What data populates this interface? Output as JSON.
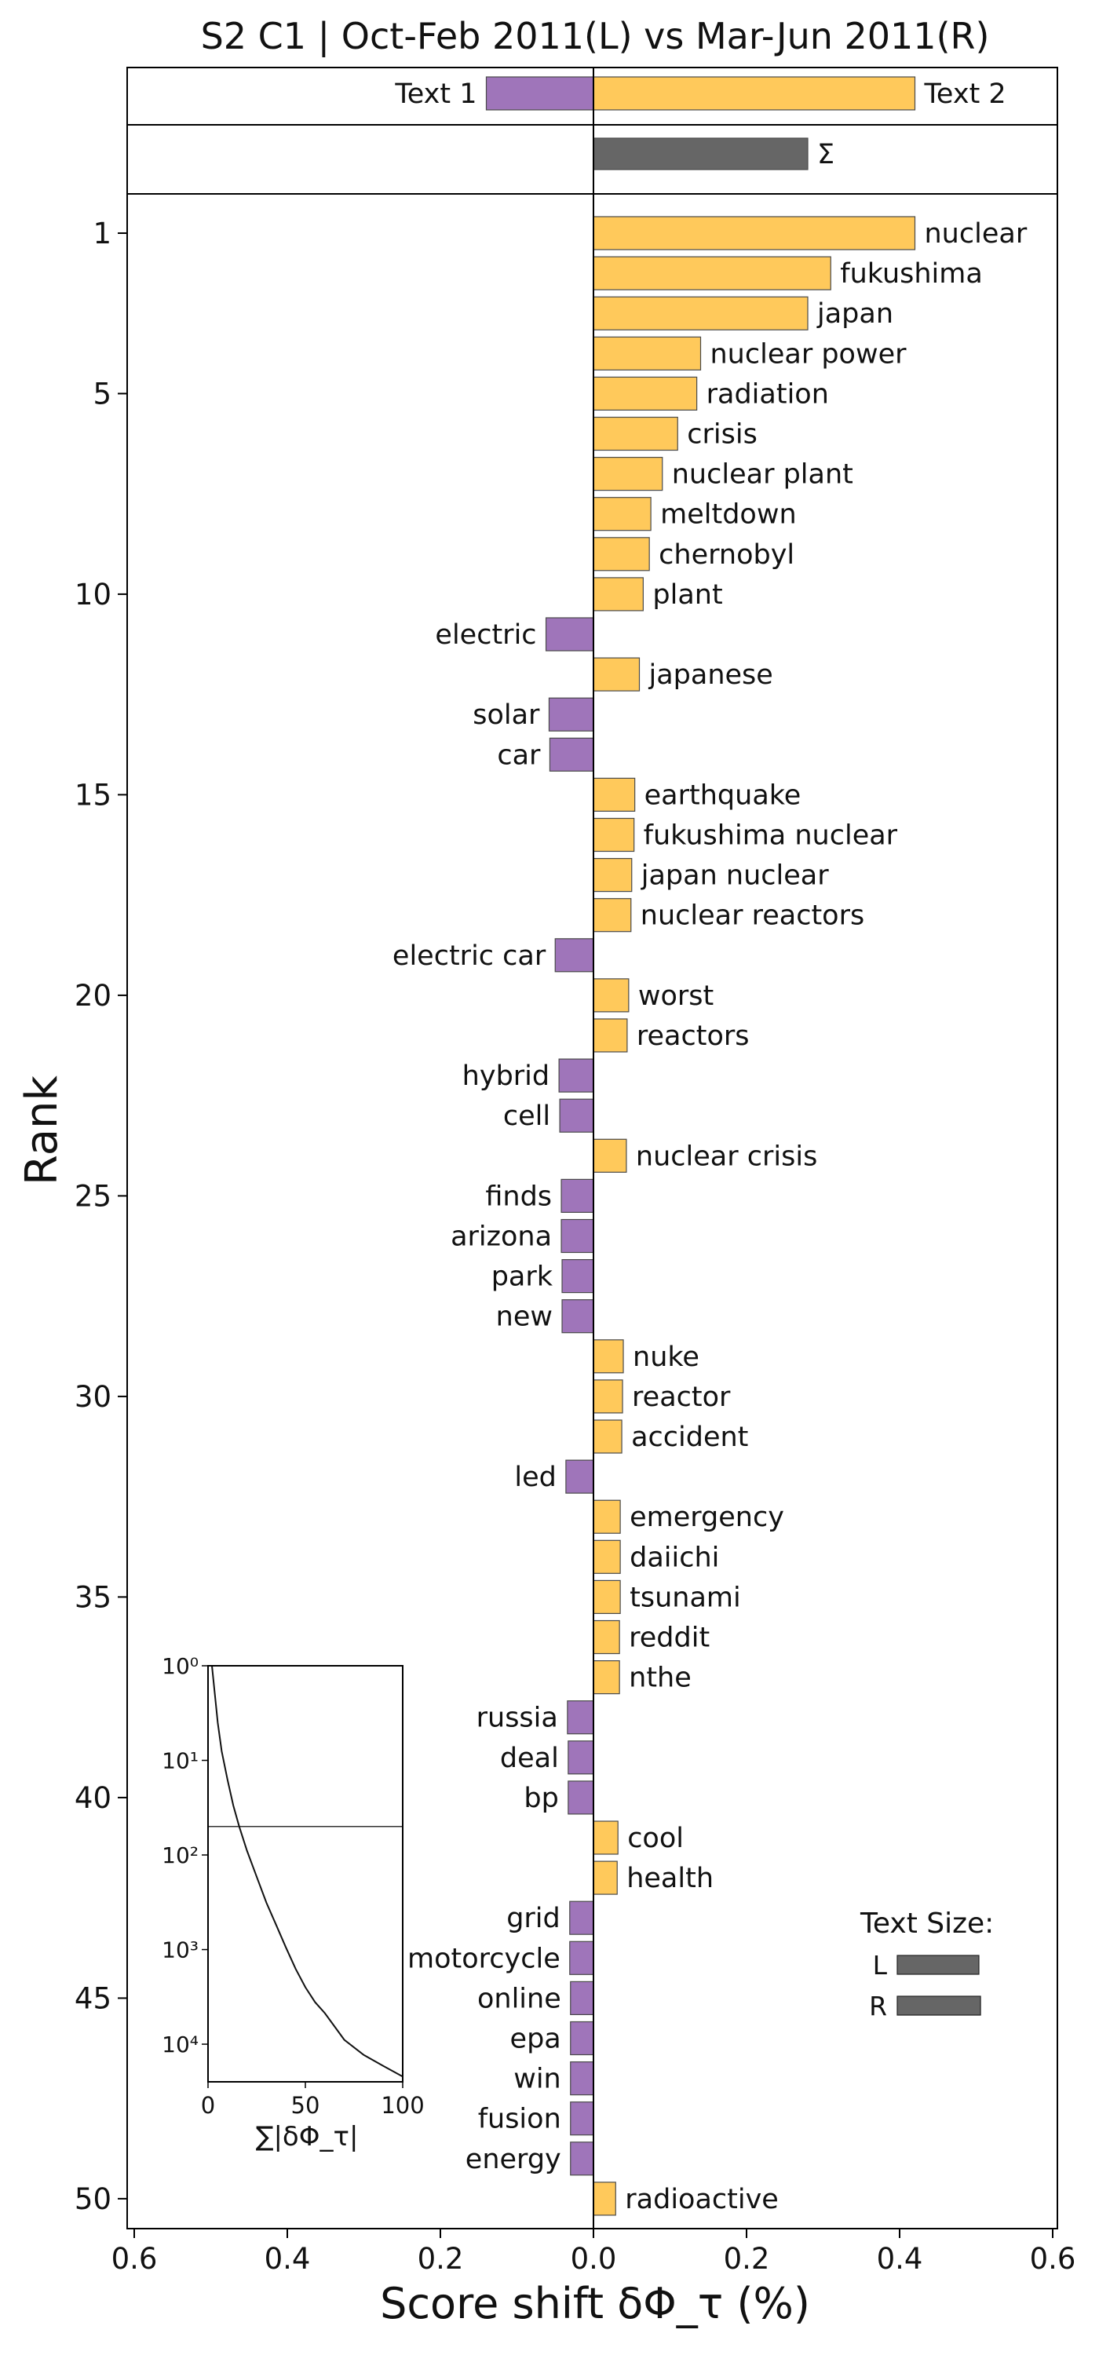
{
  "chart_data": {
    "type": "bar",
    "title": "S2 C1 | Oct-Feb 2011(L) vs Mar-Jun 2011(R)",
    "xlabel": "Score shift δΦ_τ (%)",
    "ylabel": "Rank",
    "xlim": [
      -0.6,
      0.6
    ],
    "ylim": [
      50.6,
      0.4
    ],
    "x_ticks": [
      -0.6,
      -0.4,
      -0.2,
      0.0,
      0.2,
      0.4,
      0.6
    ],
    "x_tick_labels": [
      "0.6",
      "0.4",
      "0.2",
      "0.0",
      "0.2",
      "0.4",
      "0.6"
    ],
    "y_ticks": [
      1,
      5,
      10,
      15,
      20,
      25,
      30,
      35,
      40,
      45,
      50
    ],
    "colors": {
      "left": "#9f75ba",
      "right": "#ffc95b",
      "sum": "#666666",
      "edge": "#4a4a4a"
    },
    "top_panel": [
      {
        "label": "Text 1",
        "value": -0.14
      },
      {
        "label": "Text 2",
        "value": 0.42
      }
    ],
    "sum_bar": {
      "label": "Σ",
      "value": 0.28
    },
    "words": [
      {
        "rank": 1,
        "word": "nuclear",
        "value": 0.42
      },
      {
        "rank": 2,
        "word": "fukushima",
        "value": 0.31
      },
      {
        "rank": 3,
        "word": "japan",
        "value": 0.28
      },
      {
        "rank": 4,
        "word": "nuclear power",
        "value": 0.14
      },
      {
        "rank": 5,
        "word": "radiation",
        "value": 0.135
      },
      {
        "rank": 6,
        "word": "crisis",
        "value": 0.11
      },
      {
        "rank": 7,
        "word": "nuclear plant",
        "value": 0.09
      },
      {
        "rank": 8,
        "word": "meltdown",
        "value": 0.075
      },
      {
        "rank": 9,
        "word": "chernobyl",
        "value": 0.073
      },
      {
        "rank": 10,
        "word": "plant",
        "value": 0.065
      },
      {
        "rank": 11,
        "word": "electric",
        "value": -0.062
      },
      {
        "rank": 12,
        "word": "japanese",
        "value": 0.06
      },
      {
        "rank": 13,
        "word": "solar",
        "value": -0.058
      },
      {
        "rank": 14,
        "word": "car",
        "value": -0.057
      },
      {
        "rank": 15,
        "word": "earthquake",
        "value": 0.054
      },
      {
        "rank": 16,
        "word": "fukushima nuclear",
        "value": 0.053
      },
      {
        "rank": 17,
        "word": "japan nuclear",
        "value": 0.05
      },
      {
        "rank": 18,
        "word": "nuclear reactors",
        "value": 0.049
      },
      {
        "rank": 19,
        "word": "electric car",
        "value": -0.05
      },
      {
        "rank": 20,
        "word": "worst",
        "value": 0.046
      },
      {
        "rank": 21,
        "word": "reactors",
        "value": 0.044
      },
      {
        "rank": 22,
        "word": "hybrid",
        "value": -0.045
      },
      {
        "rank": 23,
        "word": "cell",
        "value": -0.044
      },
      {
        "rank": 24,
        "word": "nuclear crisis",
        "value": 0.043
      },
      {
        "rank": 25,
        "word": "finds",
        "value": -0.042
      },
      {
        "rank": 26,
        "word": "arizona",
        "value": -0.042
      },
      {
        "rank": 27,
        "word": "park",
        "value": -0.041
      },
      {
        "rank": 28,
        "word": "new",
        "value": -0.041
      },
      {
        "rank": 29,
        "word": "nuke",
        "value": 0.039
      },
      {
        "rank": 30,
        "word": "reactor",
        "value": 0.038
      },
      {
        "rank": 31,
        "word": "accident",
        "value": 0.037
      },
      {
        "rank": 32,
        "word": "led",
        "value": -0.036
      },
      {
        "rank": 33,
        "word": "emergency",
        "value": 0.035
      },
      {
        "rank": 34,
        "word": "daiichi",
        "value": 0.035
      },
      {
        "rank": 35,
        "word": "tsunami",
        "value": 0.035
      },
      {
        "rank": 36,
        "word": "reddit",
        "value": 0.034
      },
      {
        "rank": 37,
        "word": "nthe",
        "value": 0.034
      },
      {
        "rank": 38,
        "word": "russia",
        "value": -0.034
      },
      {
        "rank": 39,
        "word": "deal",
        "value": -0.033
      },
      {
        "rank": 40,
        "word": "bp",
        "value": -0.033
      },
      {
        "rank": 41,
        "word": "cool",
        "value": 0.032
      },
      {
        "rank": 42,
        "word": "health",
        "value": 0.031
      },
      {
        "rank": 43,
        "word": "grid",
        "value": -0.031
      },
      {
        "rank": 44,
        "word": "motorcycle",
        "value": -0.031
      },
      {
        "rank": 45,
        "word": "online",
        "value": -0.03
      },
      {
        "rank": 46,
        "word": "epa",
        "value": -0.03
      },
      {
        "rank": 47,
        "word": "win",
        "value": -0.03
      },
      {
        "rank": 48,
        "word": "fusion",
        "value": -0.03
      },
      {
        "rank": 49,
        "word": "energy",
        "value": -0.03
      },
      {
        "rank": 50,
        "word": "radioactive",
        "value": 0.029
      }
    ],
    "inset": {
      "xlabel": "∑|δΦ_τ|",
      "x_ticks": [
        0,
        50,
        100
      ],
      "xlim": [
        0,
        100
      ],
      "y_scale": "log (inverted)",
      "y_ticks": [
        1,
        10,
        100,
        1000,
        10000
      ],
      "y_tick_labels": [
        "10⁰",
        "10¹",
        "10²",
        "10³",
        "10⁴"
      ],
      "ylim": [
        1,
        25000
      ],
      "reference_line_y": 50,
      "curve": [
        [
          2,
          1
        ],
        [
          3.5,
          2
        ],
        [
          5,
          4
        ],
        [
          7,
          8
        ],
        [
          10,
          16
        ],
        [
          13,
          30
        ],
        [
          16,
          50
        ],
        [
          20,
          90
        ],
        [
          25,
          170
        ],
        [
          30,
          320
        ],
        [
          35,
          550
        ],
        [
          40,
          950
        ],
        [
          45,
          1600
        ],
        [
          50,
          2500
        ],
        [
          55,
          3600
        ],
        [
          60,
          4700
        ],
        [
          65,
          6500
        ],
        [
          70,
          9000
        ],
        [
          80,
          13000
        ],
        [
          90,
          17000
        ],
        [
          100,
          22000
        ]
      ]
    },
    "text_size": {
      "title": "Text Size:",
      "bars": [
        {
          "label": "L",
          "size": 1.0
        },
        {
          "label": "R",
          "size": 1.02
        }
      ]
    }
  }
}
